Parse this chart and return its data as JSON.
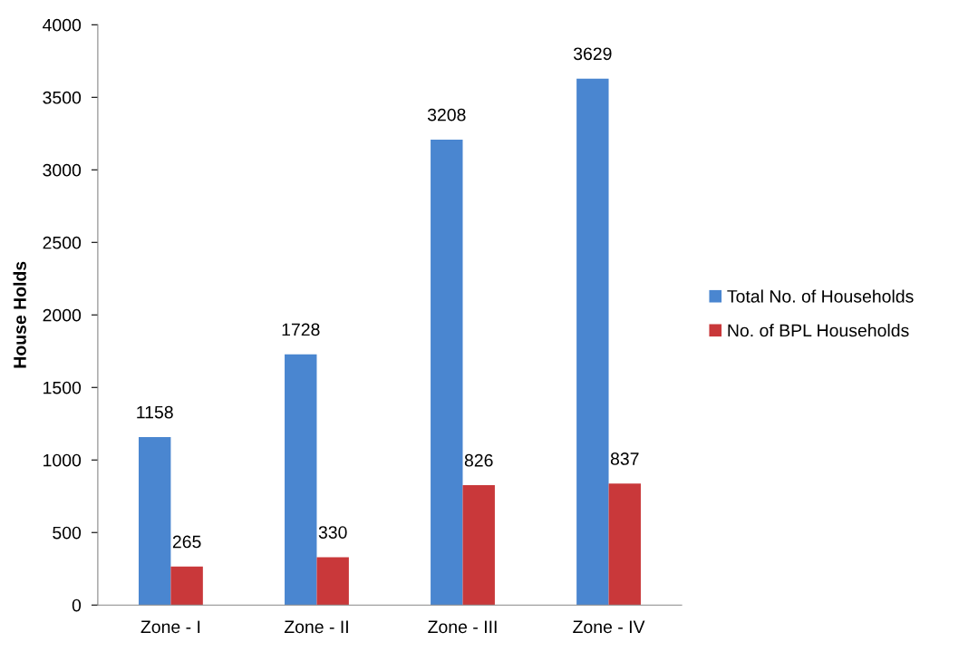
{
  "chart_data": {
    "type": "bar",
    "ylabel": "House Holds",
    "categories": [
      "Zone - I",
      "Zone - II",
      "Zone - III",
      "Zone - IV"
    ],
    "series": [
      {
        "name": "Total No. of Households",
        "color": "#4a86d0",
        "values": [
          1158,
          1728,
          3208,
          3629
        ]
      },
      {
        "name": "No. of BPL Households",
        "color": "#c9383a",
        "values": [
          265,
          330,
          826,
          837
        ]
      }
    ],
    "ylim": [
      0,
      4000
    ],
    "yticks": [
      0,
      500,
      1000,
      1500,
      2000,
      2500,
      3000,
      3500,
      4000
    ],
    "grid": false,
    "legend": "right",
    "data_labels": true
  }
}
